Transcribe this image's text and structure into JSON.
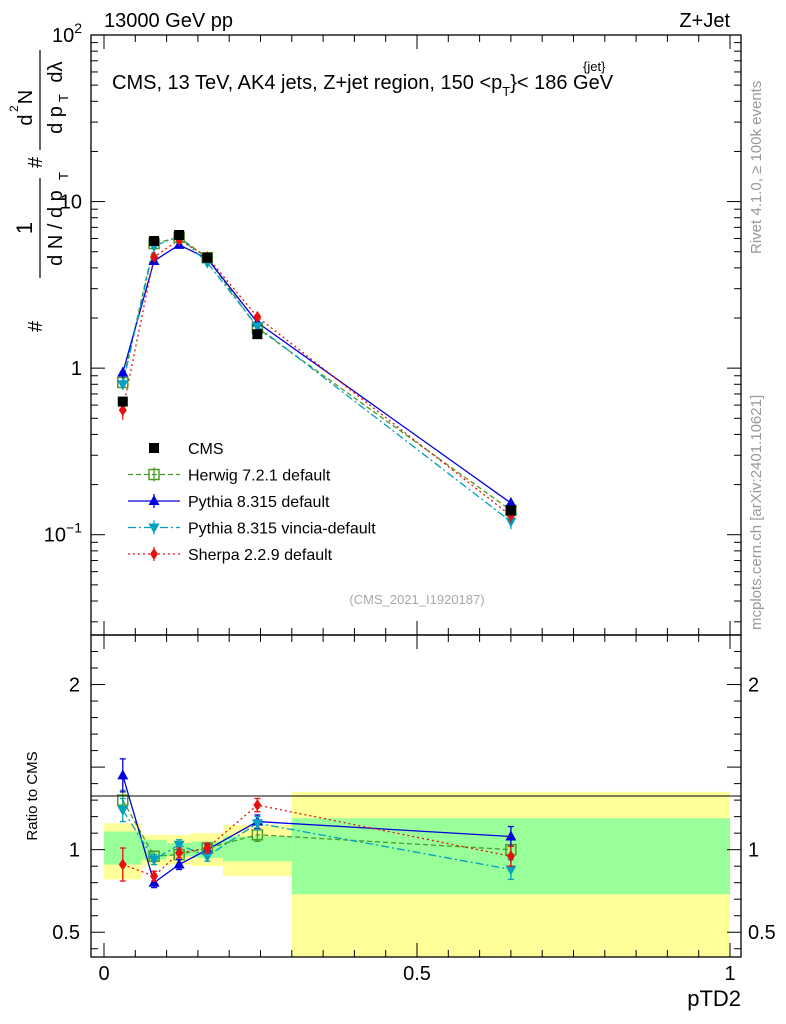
{
  "header": {
    "left": "13000 GeV pp",
    "right": "Z+Jet"
  },
  "chart_data": {
    "type": "line",
    "title": "CMS, 13 TeV, AK4 jets, Z+jet region, 150 <p",
    "title_sup": "{jet}",
    "title_sub": "T",
    "title_end": "}< 186 GeV",
    "ylabel": "# 1/dN/dp_T # d²N/dp_T dλ",
    "ylabel_parts": {
      "num": "1",
      "den": "d N / d p",
      "num2": "d",
      "sup2": "2",
      "num2b": "N",
      "den2": "d p",
      "den2b": "dλ"
    },
    "xlabel": "pTD2",
    "ratio_ylabel": "Ratio to CMS",
    "xlim": [
      0,
      1
    ],
    "ylim_log": [
      0.025,
      100
    ],
    "ratio_ylim": [
      0.35,
      2.3
    ],
    "x_ticks": [
      {
        "value": 0,
        "label": "0"
      },
      {
        "value": 0.5,
        "label": "0.5"
      },
      {
        "value": 1,
        "label": "1"
      }
    ],
    "y_ticks": [
      {
        "value": 0.1,
        "base": "10",
        "exp": "−1"
      },
      {
        "value": 1,
        "base": "1",
        "exp": ""
      },
      {
        "value": 10,
        "base": "10",
        "exp": ""
      },
      {
        "value": 100,
        "base": "10",
        "exp": "2"
      }
    ],
    "ratio_ticks": [
      {
        "value": 0.5,
        "label": "0.5"
      },
      {
        "value": 1,
        "label": "1"
      },
      {
        "value": 2,
        "label": "2"
      }
    ],
    "bins": [
      {
        "lo": 0.0,
        "hi": 0.06,
        "center": 0.03
      },
      {
        "lo": 0.06,
        "hi": 0.1,
        "center": 0.08
      },
      {
        "lo": 0.1,
        "hi": 0.14,
        "center": 0.12
      },
      {
        "lo": 0.14,
        "hi": 0.19,
        "center": 0.165
      },
      {
        "lo": 0.19,
        "hi": 0.3,
        "center": 0.245
      },
      {
        "lo": 0.3,
        "hi": 1.0,
        "center": 0.65
      }
    ],
    "ratio_bands": {
      "stat": [
        [
          0.91,
          1.11
        ],
        [
          0.94,
          1.06
        ],
        [
          0.96,
          1.04
        ],
        [
          0.95,
          1.05
        ],
        [
          0.93,
          1.08
        ],
        [
          0.73,
          1.19
        ]
      ],
      "total": [
        [
          0.82,
          1.16
        ],
        [
          0.9,
          1.09
        ],
        [
          0.91,
          1.09
        ],
        [
          0.9,
          1.1
        ],
        [
          0.84,
          1.15
        ],
        [
          0.35,
          1.35
        ]
      ]
    },
    "series": [
      {
        "name": "CMS",
        "kind": "data",
        "color": "#000000",
        "marker": "square-filled",
        "dash": "",
        "values": [
          0.63,
          5.8,
          6.3,
          4.6,
          1.6,
          0.14
        ],
        "errors": [
          0.04,
          0.2,
          0.2,
          0.15,
          0.08,
          0.01
        ],
        "ratio": [
          1,
          1,
          1,
          1,
          1,
          1
        ],
        "ratio_errors": [
          0,
          0,
          0,
          0,
          0,
          0
        ]
      },
      {
        "name": "Herwig 7.2.1 default",
        "kind": "mc",
        "color": "#4a9c24",
        "marker": "square-open",
        "dash": "5,3",
        "values": [
          0.82,
          5.6,
          6.1,
          4.6,
          1.74,
          0.14
        ],
        "errors": [
          0.05,
          0.2,
          0.2,
          0.15,
          0.07,
          0.01
        ],
        "ratio": [
          1.3,
          0.96,
          0.97,
          1.01,
          1.09,
          1.0
        ],
        "ratio_errors": [
          0.06,
          0.03,
          0.03,
          0.03,
          0.04,
          0.06
        ]
      },
      {
        "name": "Pythia 8.315 default",
        "kind": "mc",
        "color": "#0000dd",
        "marker": "triangle-up",
        "dash": "",
        "values": [
          0.94,
          4.4,
          5.5,
          4.55,
          1.88,
          0.155
        ],
        "errors": [
          0.07,
          0.15,
          0.2,
          0.15,
          0.07,
          0.012
        ],
        "ratio": [
          1.45,
          0.8,
          0.91,
          1.0,
          1.17,
          1.08
        ],
        "ratio_errors": [
          0.1,
          0.03,
          0.03,
          0.03,
          0.04,
          0.06
        ]
      },
      {
        "name": "Pythia 8.315 vincia-default",
        "kind": "mc",
        "color": "#00a0c0",
        "marker": "triangle-down",
        "dash": "8,3,2,3",
        "values": [
          0.8,
          5.4,
          6.2,
          4.3,
          1.78,
          0.12
        ],
        "errors": [
          0.06,
          0.2,
          0.2,
          0.15,
          0.07,
          0.012
        ],
        "ratio": [
          1.24,
          0.94,
          1.03,
          0.96,
          1.16,
          0.88
        ],
        "ratio_errors": [
          0.07,
          0.03,
          0.03,
          0.03,
          0.04,
          0.06
        ]
      },
      {
        "name": "Sherpa 2.2.9 default",
        "kind": "mc",
        "color": "#e8100c",
        "marker": "diamond",
        "dash": "2,3",
        "values": [
          0.56,
          4.65,
          5.9,
          4.65,
          2.03,
          0.13
        ],
        "errors": [
          0.07,
          0.15,
          0.2,
          0.15,
          0.07,
          0.012
        ],
        "ratio": [
          0.91,
          0.84,
          0.98,
          1.01,
          1.27,
          0.96
        ],
        "ratio_errors": [
          0.1,
          0.03,
          0.03,
          0.03,
          0.04,
          0.06
        ]
      }
    ],
    "analysis_tag": "(CMS_2021_I1920187)",
    "side_text_top": "Rivet 4.1.0, ≥ 100k events",
    "side_text_bottom": "mcplots.cern.ch [arXiv:2401.10621]",
    "colors": {
      "stat_band": "#99ff99",
      "total_band": "#ffff99",
      "side_text": "#999999",
      "tag_text": "#a8a8a8"
    }
  }
}
